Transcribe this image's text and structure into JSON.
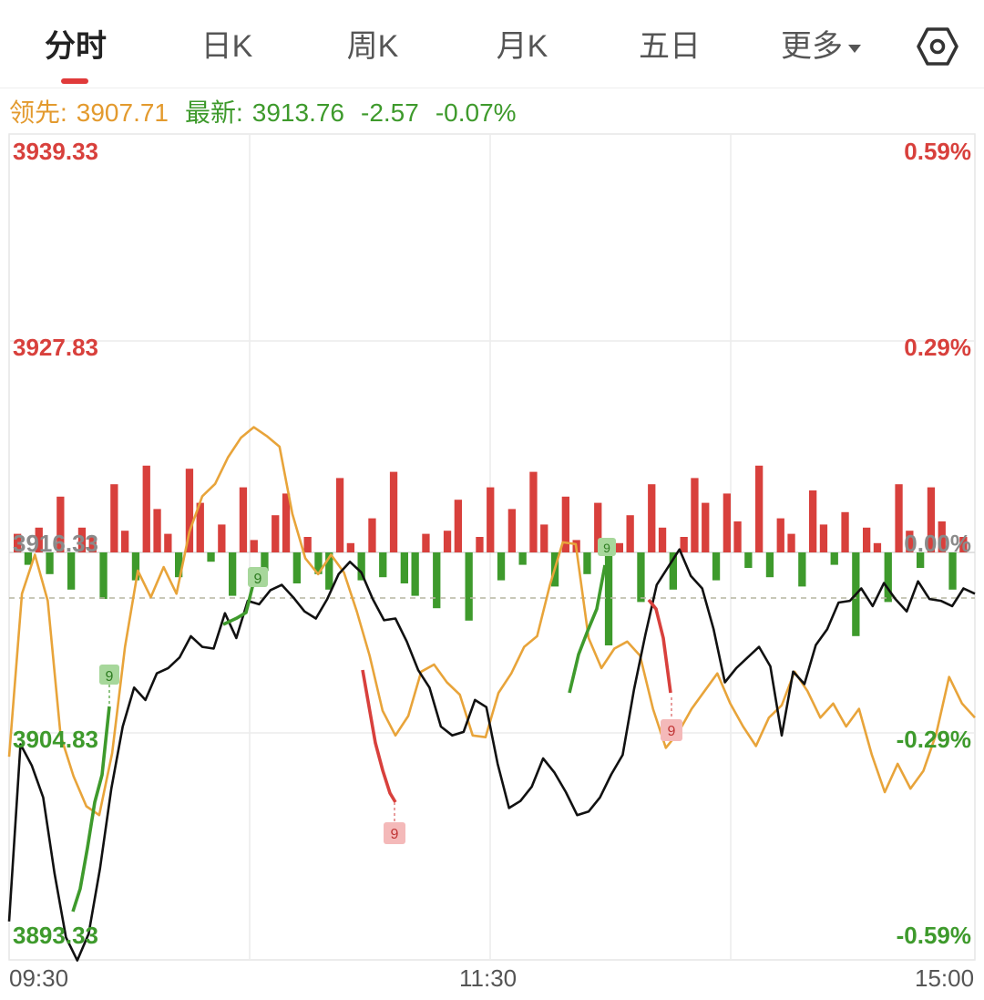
{
  "tabs": [
    {
      "label": "分时",
      "active": true
    },
    {
      "label": "日K",
      "active": false
    },
    {
      "label": "周K",
      "active": false
    },
    {
      "label": "月K",
      "active": false
    },
    {
      "label": "五日",
      "active": false
    },
    {
      "label": "更多",
      "active": false
    }
  ],
  "settings_icon": "hexagon-settings-icon",
  "info": {
    "leader_label": "领先:",
    "leader_value": "3907.71",
    "latest_label": "最新:",
    "latest_value": "3913.76",
    "change": "-2.57",
    "change_pct": "-0.07%"
  },
  "colors": {
    "up": "#d8403c",
    "down": "#3e9a2c",
    "price_line": "#111111",
    "leader_line": "#e8a43a"
  },
  "chart_data": {
    "type": "line",
    "x_ticks": [
      "09:30",
      "11:30",
      "15:00"
    ],
    "y_left_labels": [
      "3939.33",
      "3927.83",
      "3916.33",
      "3904.83",
      "3893.33"
    ],
    "y_right_labels": [
      "0.59%",
      "0.29%",
      "0.00%",
      "-0.29%",
      "-0.59%"
    ],
    "ylim": [
      3893.33,
      3939.33
    ],
    "prev_close": 3916.33,
    "avg_price_level": 3913.76,
    "series": [
      {
        "values": [
          3895.5,
          3905.5,
          3904.3,
          3902.5,
          3898.2,
          3894.6,
          3893.3,
          3894.8,
          3898.5,
          3903.0,
          3906.5,
          3908.7,
          3908.0,
          3909.5,
          3909.8,
          3910.4,
          3911.6,
          3911.0,
          3910.9,
          3912.9,
          3911.5,
          3913.6,
          3913.4,
          3914.2,
          3914.5,
          3913.8,
          3913.0,
          3912.6,
          3913.7,
          3915.1,
          3915.8,
          3915.2,
          3913.7,
          3912.5,
          3912.6,
          3911.3,
          3909.7,
          3908.7,
          3906.5,
          3906.0,
          3906.2,
          3908.0,
          3907.6,
          3904.4,
          3901.9,
          3902.3,
          3903.1,
          3904.7,
          3903.9,
          3902.8,
          3901.5,
          3901.7,
          3902.5,
          3903.8,
          3904.9,
          3908.6,
          3911.7,
          3914.5,
          3915.5,
          3916.5,
          3915.0,
          3914.3,
          3912.0,
          3909.0,
          3909.8,
          3910.4,
          3911.0,
          3909.9,
          3906.0,
          3909.6,
          3908.9,
          3911.1,
          3912.0,
          3913.5,
          3913.6,
          3914.3,
          3913.3,
          3914.6,
          3913.7,
          3913.0,
          3914.7,
          3913.7,
          3913.6,
          3913.3,
          3914.3,
          3914.0
        ]
      },
      {
        "values": [
          3904.8,
          3914.0,
          3916.2,
          3913.6,
          3906.0,
          3903.7,
          3902.0,
          3901.5,
          3905.0,
          3911.0,
          3915.3,
          3913.8,
          3915.5,
          3914.0,
          3917.5,
          3919.5,
          3920.2,
          3921.7,
          3922.8,
          3923.4,
          3922.9,
          3922.3,
          3918.5,
          3916.0,
          3915.1,
          3916.2,
          3915.2,
          3913.0,
          3910.5,
          3907.4,
          3906.0,
          3907.1,
          3909.6,
          3910.0,
          3909.0,
          3908.3,
          3906.0,
          3905.9,
          3908.4,
          3909.5,
          3911.0,
          3911.6,
          3914.5,
          3916.9,
          3916.8,
          3911.5,
          3909.8,
          3910.9,
          3911.3,
          3910.5,
          3907.5,
          3905.3,
          3906.2,
          3907.5,
          3908.5,
          3909.5,
          3907.8,
          3906.5,
          3905.4,
          3907.0,
          3907.7,
          3909.6,
          3908.5,
          3907.0,
          3907.8,
          3906.5,
          3907.5,
          3904.9,
          3902.8,
          3904.4,
          3903.0,
          3904.0,
          3906.1,
          3909.3,
          3907.8,
          3907.0
        ]
      }
    ],
    "volume_bars": [
      6,
      -4,
      8,
      -7,
      18,
      -12,
      8,
      5,
      -15,
      22,
      7,
      -9,
      28,
      14,
      6,
      -8,
      27,
      16,
      -3,
      9,
      -14,
      21,
      4,
      -6,
      12,
      19,
      -10,
      5,
      -7,
      -12,
      24,
      3,
      -9,
      11,
      -8,
      26,
      -10,
      -14,
      6,
      -18,
      7,
      17,
      -22,
      5,
      21,
      -9,
      14,
      -4,
      26,
      9,
      -11,
      18,
      4,
      -7,
      16,
      -30,
      3,
      12,
      -16,
      22,
      8,
      -12,
      5,
      24,
      16,
      -9,
      19,
      10,
      -5,
      28,
      -8,
      11,
      6,
      -11,
      20,
      9,
      -4,
      13,
      -27,
      8,
      3,
      -16,
      22,
      7,
      -5,
      21,
      10,
      -12,
      5
    ]
  },
  "markers": [
    {
      "label": "9",
      "kind": "down"
    },
    {
      "label": "9",
      "kind": "down"
    },
    {
      "label": "9",
      "kind": "up"
    },
    {
      "label": "9",
      "kind": "up"
    },
    {
      "label": "9",
      "kind": "down"
    }
  ]
}
